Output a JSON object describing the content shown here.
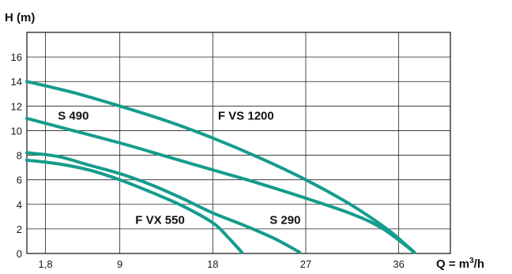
{
  "chart_data": {
    "type": "line",
    "title": "",
    "ylabel": "H (m)",
    "xlabel_parts": {
      "main": "Q = m",
      "sup": "3",
      "tail": "/h"
    },
    "xlim": [
      0,
      41
    ],
    "ylim": [
      0,
      18
    ],
    "x_ticks": [
      {
        "value": 1.8,
        "label": "1,8"
      },
      {
        "value": 9,
        "label": "9"
      },
      {
        "value": 18,
        "label": "18"
      },
      {
        "value": 27,
        "label": "27"
      },
      {
        "value": 36,
        "label": "36"
      }
    ],
    "y_ticks": [
      {
        "value": 0,
        "label": "0"
      },
      {
        "value": 2,
        "label": "2"
      },
      {
        "value": 4,
        "label": "4"
      },
      {
        "value": 6,
        "label": "6"
      },
      {
        "value": 8,
        "label": "8"
      },
      {
        "value": 10,
        "label": "10"
      },
      {
        "value": 12,
        "label": "12"
      },
      {
        "value": 14,
        "label": "14"
      },
      {
        "value": 16,
        "label": "16"
      }
    ],
    "grid": true,
    "line_color": "#159c8c",
    "series": [
      {
        "name": "F VS 1200",
        "points": [
          [
            0,
            14.0
          ],
          [
            4.5,
            13.1
          ],
          [
            9,
            12.0
          ],
          [
            13.5,
            10.8
          ],
          [
            18,
            9.4
          ],
          [
            22.5,
            7.8
          ],
          [
            27,
            6.0
          ],
          [
            31.5,
            3.9
          ],
          [
            35,
            1.9
          ],
          [
            37.5,
            0.1
          ]
        ],
        "label_at": [
          18.5,
          10.9
        ]
      },
      {
        "name": "S 490",
        "points": [
          [
            0,
            11.0
          ],
          [
            4.5,
            10.0
          ],
          [
            9,
            9.0
          ],
          [
            13.5,
            7.9
          ],
          [
            18,
            6.8
          ],
          [
            22.5,
            5.7
          ],
          [
            27,
            4.5
          ],
          [
            31.5,
            3.2
          ],
          [
            34.5,
            2.0
          ],
          [
            37.5,
            0.1
          ]
        ],
        "label_at": [
          3.0,
          10.9
        ]
      },
      {
        "name": "S 290",
        "points": [
          [
            0,
            8.2
          ],
          [
            3,
            7.9
          ],
          [
            6,
            7.2
          ],
          [
            9,
            6.5
          ],
          [
            12,
            5.6
          ],
          [
            15,
            4.5
          ],
          [
            18,
            3.3
          ],
          [
            21,
            2.3
          ],
          [
            24,
            1.2
          ],
          [
            26.4,
            0.1
          ]
        ],
        "label_at": [
          23.5,
          2.4
        ]
      },
      {
        "name": "F VX 550",
        "points": [
          [
            0,
            7.6
          ],
          [
            3,
            7.3
          ],
          [
            6,
            6.8
          ],
          [
            9,
            6.0
          ],
          [
            12,
            5.0
          ],
          [
            15,
            3.9
          ],
          [
            18,
            2.5
          ],
          [
            19.5,
            1.3
          ],
          [
            20.8,
            0.1
          ]
        ],
        "label_at": [
          10.5,
          2.4
        ]
      }
    ]
  }
}
